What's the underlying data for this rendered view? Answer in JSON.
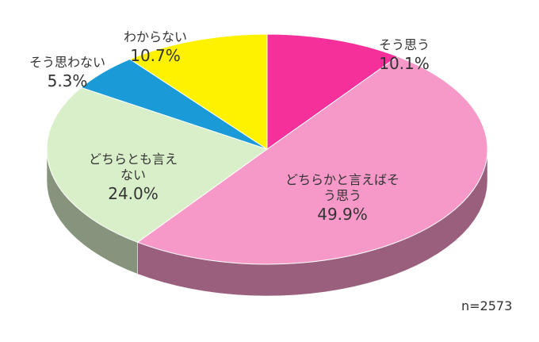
{
  "chart_data": {
    "type": "pie",
    "categories": [
      "そう思う",
      "どちらかと言えばそう思う",
      "どちらとも言えない",
      "そう思わない",
      "わからない"
    ],
    "values": [
      10.1,
      49.9,
      24.0,
      5.3,
      10.7
    ],
    "value_labels": [
      "10.1%",
      "49.9%",
      "24.0%",
      "5.3%",
      "10.7%"
    ],
    "colors": [
      "#f5309a",
      "#f799c8",
      "#d9efc9",
      "#1a9ad6",
      "#fff200"
    ],
    "annotation": "n=2573"
  }
}
